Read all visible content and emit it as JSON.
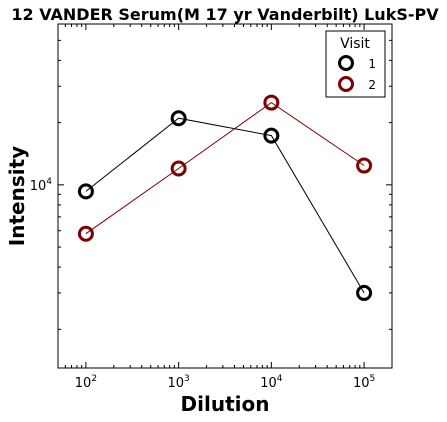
{
  "chart_data": {
    "type": "line",
    "title": "12 VANDER Serum(M 17 yr Vanderbilt) LukS-PV",
    "xlabel": "Dilution",
    "ylabel": "Intensity",
    "xscale": "log",
    "yscale": "log",
    "xlim": [
      50,
      200000
    ],
    "ylim": [
      1300,
      60000
    ],
    "x_ticks": [
      {
        "base": "10",
        "exp": "2",
        "value": 100
      },
      {
        "base": "10",
        "exp": "3",
        "value": 1000
      },
      {
        "base": "10",
        "exp": "4",
        "value": 10000
      },
      {
        "base": "10",
        "exp": "5",
        "value": 100000
      }
    ],
    "y_ticks": [
      {
        "base": "10",
        "exp": "4",
        "value": 10000
      }
    ],
    "grid": false,
    "legend": {
      "title": "Visit",
      "position": "top-right"
    },
    "series": [
      {
        "name": "1",
        "color": "#000000",
        "x": [
          100,
          1000,
          10000,
          100000
        ],
        "y": [
          9300,
          21000,
          17300,
          3000
        ]
      },
      {
        "name": "2",
        "color": "#800000",
        "x": [
          100,
          1000,
          10000,
          100000
        ],
        "y": [
          5800,
          12000,
          25000,
          12400
        ]
      }
    ]
  }
}
